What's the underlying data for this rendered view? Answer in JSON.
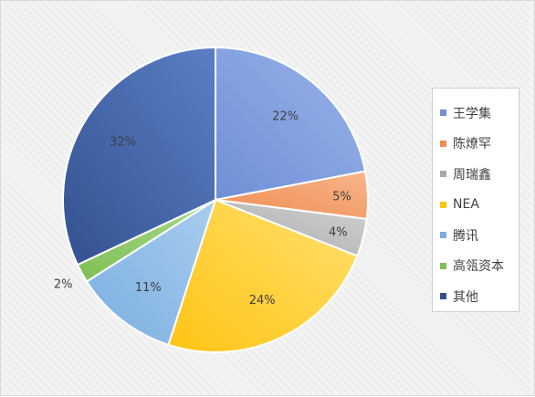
{
  "chart_data": {
    "type": "pie",
    "title": "",
    "legend_position": "right",
    "categories": [
      "王学集",
      "陈燎罕",
      "周瑞鑫",
      "NEA",
      "腾讯",
      "高瓴资本",
      "其他"
    ],
    "values": [
      22,
      5,
      4,
      24,
      11,
      2,
      32
    ],
    "labels": [
      "22%",
      "5%",
      "4%",
      "24%",
      "11%",
      "2%",
      "32%"
    ],
    "colors": [
      "#6f8fd6",
      "#f08c4f",
      "#a9a9a9",
      "#ffc414",
      "#7aaee0",
      "#7fbf55",
      "#34518f"
    ],
    "colors_light": [
      "#9ab4ea",
      "#f7b58a",
      "#d3d3d3",
      "#ffe070",
      "#a9cdef",
      "#a9d98a",
      "#5a7fc6"
    ]
  }
}
